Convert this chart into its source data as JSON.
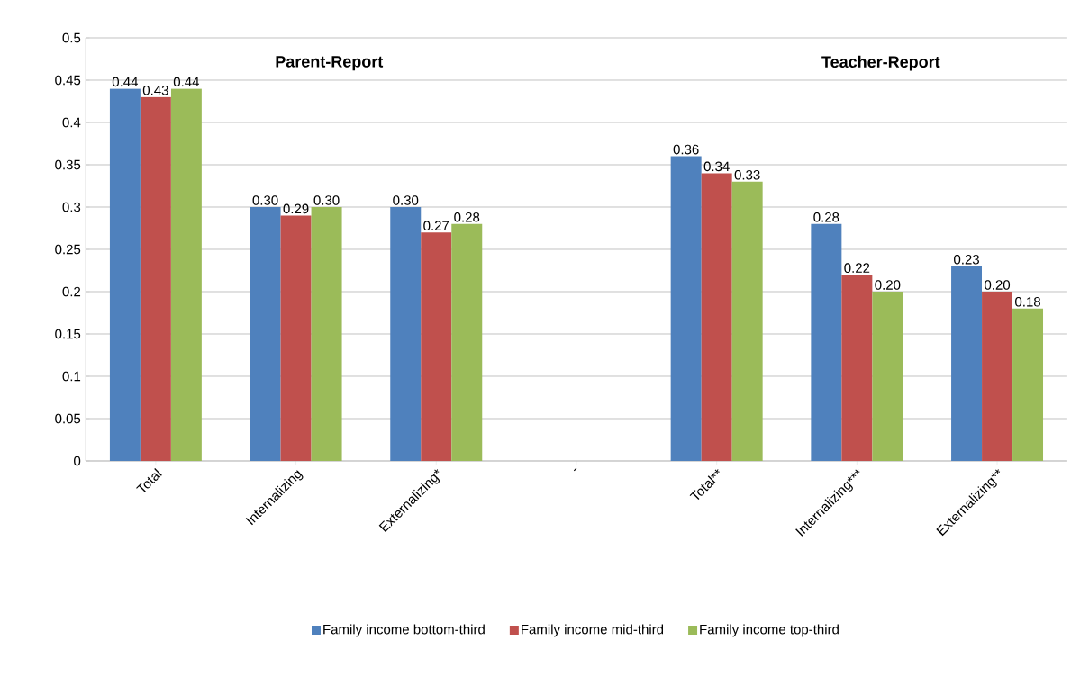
{
  "chart_data": {
    "type": "bar",
    "categories": [
      "Total",
      "Internalizing",
      "Externalizing*",
      "-",
      "Total**",
      "Internalizing***",
      "Externalizing**"
    ],
    "series": [
      {
        "name": "Family income bottom-third",
        "color": "#4f81bd",
        "values": [
          0.44,
          0.3,
          0.3,
          null,
          0.36,
          0.28,
          0.23
        ],
        "value_labels": [
          "0.44",
          "0.30",
          "0.30",
          null,
          "0.36",
          "0.28",
          "0.23"
        ]
      },
      {
        "name": "Family income mid-third",
        "color": "#c0504d",
        "values": [
          0.43,
          0.29,
          0.27,
          null,
          0.34,
          0.22,
          0.2
        ],
        "value_labels": [
          "0.43",
          "0.29",
          "0.27",
          null,
          "0.34",
          "0.22",
          "0.20"
        ]
      },
      {
        "name": "Family income top-third",
        "color": "#9bbb59",
        "values": [
          0.44,
          0.3,
          0.28,
          null,
          0.33,
          0.2,
          0.18
        ],
        "value_labels": [
          "0.44",
          "0.30",
          "0.28",
          null,
          "0.33",
          "0.20",
          "0.18"
        ]
      }
    ],
    "ylim": [
      0,
      0.5
    ],
    "yticks": [
      0,
      0.05,
      0.1,
      0.15,
      0.2,
      0.25,
      0.3,
      0.35,
      0.4,
      0.45,
      0.5
    ],
    "annotations": [
      "Parent-Report",
      "Teacher-Report"
    ],
    "grid": "y",
    "legend": "bottom"
  }
}
